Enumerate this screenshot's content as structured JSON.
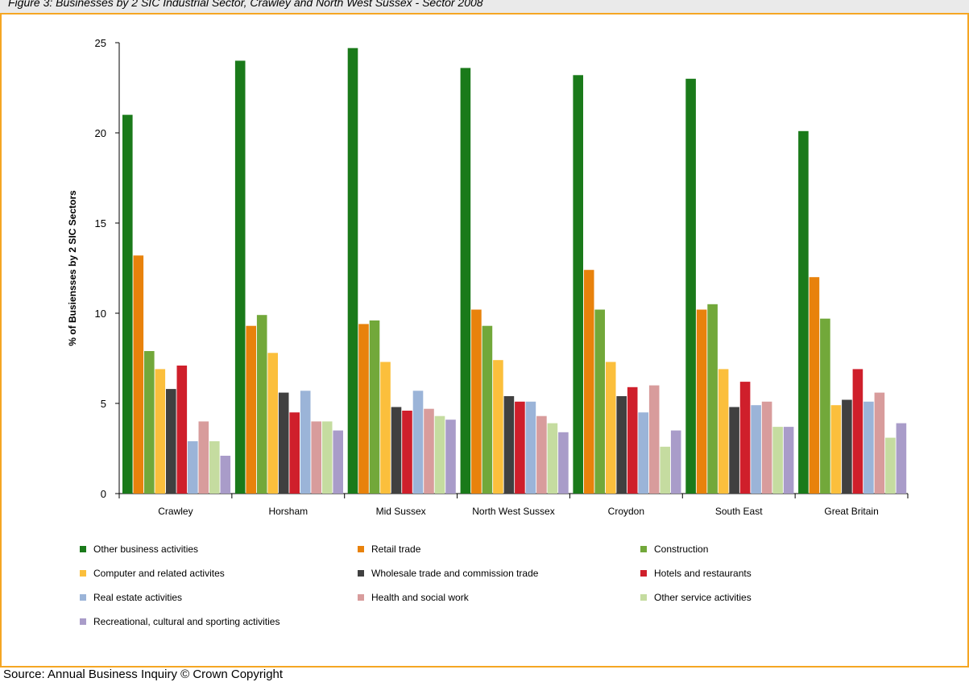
{
  "header": {
    "title": "Figure 3: Businesses by 2 SIC Industrial Sector, Crawley and North West Sussex - Sector 2008"
  },
  "footer": {
    "source": "Source: Annual Business Inquiry © Crown Copyright"
  },
  "chart_data": {
    "type": "bar",
    "title": "Figure 3: Businesses by 2 SIC Industrial Sector, Crawley and North West Sussex - Sector 2008",
    "xlabel": "",
    "ylabel": "% of Busiensses by 2 SIC Sectors",
    "ylim": [
      0,
      25
    ],
    "yticks": [
      0,
      5,
      10,
      15,
      20,
      25
    ],
    "grid": false,
    "legend_position": "bottom",
    "categories": [
      "Crawley",
      "Horsham",
      "Mid Sussex",
      "North West Sussex",
      "Croydon",
      "South East",
      "Great Britain"
    ],
    "series": [
      {
        "name": "Other business activities",
        "color": "#1a7a1a",
        "values": [
          21.0,
          24.0,
          24.7,
          23.6,
          23.2,
          23.0,
          20.1
        ]
      },
      {
        "name": "Retail trade",
        "color": "#e8820c",
        "values": [
          13.2,
          9.3,
          9.4,
          10.2,
          12.4,
          10.2,
          12.0
        ]
      },
      {
        "name": "Construction",
        "color": "#72a83a",
        "values": [
          7.9,
          9.9,
          9.6,
          9.3,
          10.2,
          10.5,
          9.7
        ]
      },
      {
        "name": "Computer and related activites",
        "color": "#fbbf3c",
        "values": [
          6.9,
          7.8,
          7.3,
          7.4,
          7.3,
          6.9,
          4.9
        ]
      },
      {
        "name": "Wholesale trade and commission trade",
        "color": "#404040",
        "values": [
          5.8,
          5.6,
          4.8,
          5.4,
          5.4,
          4.8,
          5.2
        ]
      },
      {
        "name": "Hotels and restaurants",
        "color": "#cf1f2b",
        "values": [
          7.1,
          4.5,
          4.6,
          5.1,
          5.9,
          6.2,
          6.9
        ]
      },
      {
        "name": "Real estate activities",
        "color": "#9bb4d8",
        "values": [
          2.9,
          5.7,
          5.7,
          5.1,
          4.5,
          4.9,
          5.1
        ]
      },
      {
        "name": "Health and social work",
        "color": "#d89c9c",
        "values": [
          4.0,
          4.0,
          4.7,
          4.3,
          6.0,
          5.1,
          5.6
        ]
      },
      {
        "name": "Other service activities",
        "color": "#c5dca0",
        "values": [
          2.9,
          4.0,
          4.3,
          3.9,
          2.6,
          3.7,
          3.1
        ]
      },
      {
        "name": "Recreational, cultural and sporting activities",
        "color": "#a99cc9",
        "values": [
          2.1,
          3.5,
          4.1,
          3.4,
          3.5,
          3.7,
          3.9
        ]
      }
    ]
  }
}
